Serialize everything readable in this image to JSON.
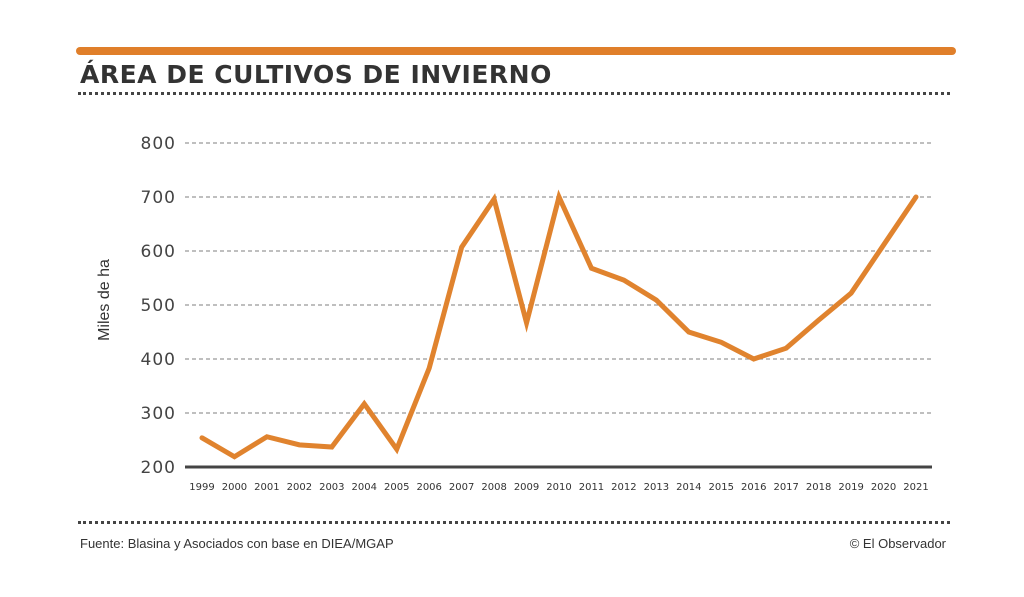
{
  "header": {
    "title": "ÁREA DE CULTIVOS DE INVIERNO"
  },
  "footer": {
    "source": "Fuente: Blasina y Asociados con base en DIEA/MGAP",
    "credit": "© El Observador"
  },
  "colors": {
    "accent": "#e07f2a",
    "line": "#e0832e",
    "text": "#333333"
  },
  "chart_data": {
    "type": "line",
    "title": "ÁREA DE CULTIVOS DE INVIERNO",
    "xlabel": "",
    "ylabel": "Miles de ha",
    "ylim": [
      200,
      800
    ],
    "yticks": [
      "200",
      "300",
      "400",
      "500",
      "600",
      "700",
      "800"
    ],
    "grid": true,
    "categories": [
      "1999",
      "2000",
      "2001",
      "2002",
      "2003",
      "2004",
      "2005",
      "2006",
      "2007",
      "2008",
      "2009",
      "2010",
      "2011",
      "2012",
      "2013",
      "2014",
      "2015",
      "2016",
      "2017",
      "2018",
      "2019",
      "2020",
      "2021"
    ],
    "series": [
      {
        "values": [
          254,
          219,
          256,
          241,
          237,
          317,
          233,
          383,
          607,
          696,
          467,
          700,
          568,
          546,
          509,
          450,
          431,
          400,
          420,
          472,
          522,
          611,
          700
        ]
      }
    ]
  }
}
